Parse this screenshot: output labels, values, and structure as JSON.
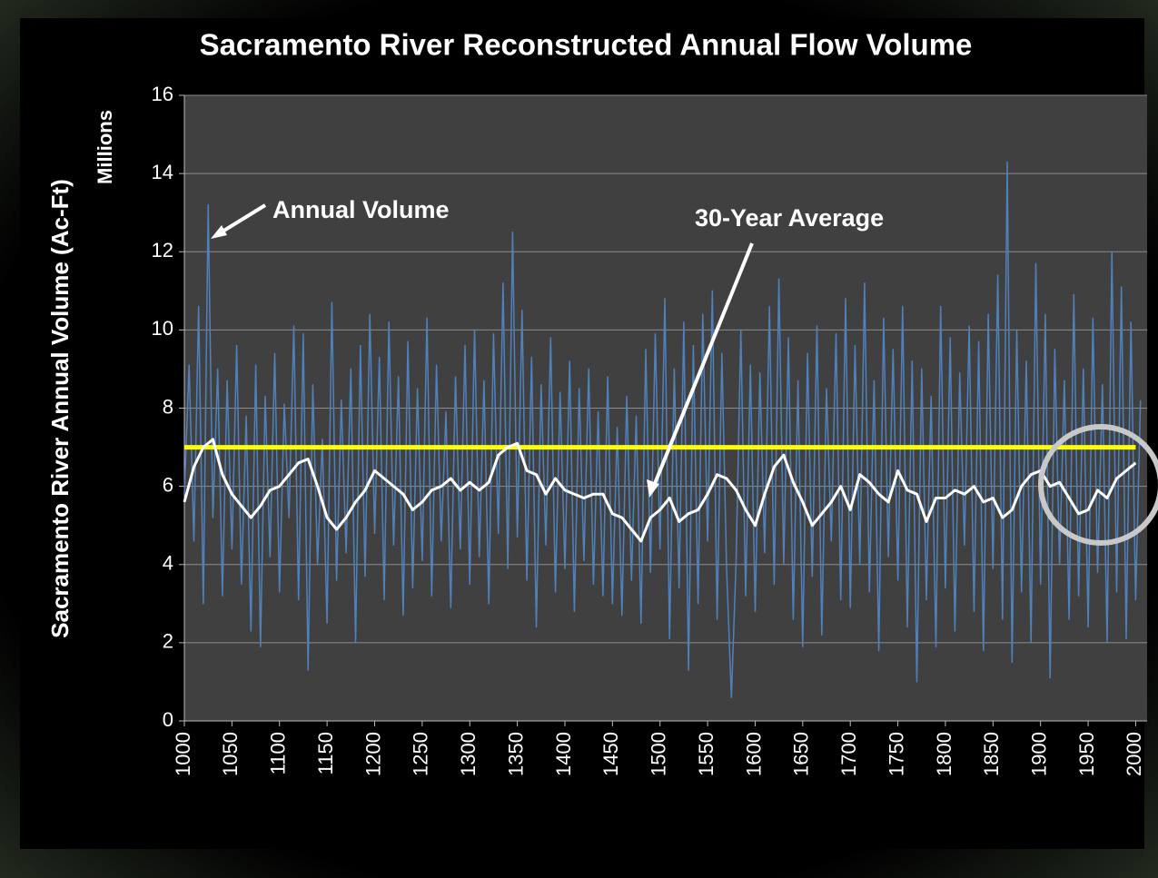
{
  "chart_data": {
    "type": "line",
    "title": "Sacramento River Reconstructed Annual Flow Volume",
    "y_label": "Sacramento River Annual Volume (Ac-Ft)",
    "y_unit_label": "Millions",
    "xlim": [
      1000,
      2012
    ],
    "ylim": [
      0,
      16
    ],
    "xticks": [
      1000,
      1050,
      1100,
      1150,
      1200,
      1250,
      1300,
      1350,
      1400,
      1450,
      1500,
      1550,
      1600,
      1650,
      1700,
      1750,
      1800,
      1850,
      1900,
      1950,
      2000
    ],
    "yticks": [
      0,
      2,
      4,
      6,
      8,
      10,
      12,
      14,
      16
    ],
    "grid": true,
    "series": [
      {
        "name": "Annual Volume",
        "color": "#4f81bd",
        "x": [
          1000,
          1005,
          1010,
          1015,
          1020,
          1025,
          1030,
          1035,
          1040,
          1045,
          1050,
          1055,
          1060,
          1065,
          1070,
          1075,
          1080,
          1085,
          1090,
          1095,
          1100,
          1105,
          1110,
          1115,
          1120,
          1125,
          1130,
          1135,
          1140,
          1145,
          1150,
          1155,
          1160,
          1165,
          1170,
          1175,
          1180,
          1185,
          1190,
          1195,
          1200,
          1205,
          1210,
          1215,
          1220,
          1225,
          1230,
          1235,
          1240,
          1245,
          1250,
          1255,
          1260,
          1265,
          1270,
          1275,
          1280,
          1285,
          1290,
          1295,
          1300,
          1305,
          1310,
          1315,
          1320,
          1325,
          1330,
          1335,
          1340,
          1345,
          1350,
          1355,
          1360,
          1365,
          1370,
          1375,
          1380,
          1385,
          1390,
          1395,
          1400,
          1405,
          1410,
          1415,
          1420,
          1425,
          1430,
          1435,
          1440,
          1445,
          1450,
          1455,
          1460,
          1465,
          1470,
          1475,
          1480,
          1485,
          1490,
          1495,
          1500,
          1505,
          1510,
          1515,
          1520,
          1525,
          1530,
          1535,
          1540,
          1545,
          1550,
          1555,
          1560,
          1565,
          1570,
          1575,
          1580,
          1585,
          1590,
          1595,
          1600,
          1605,
          1610,
          1615,
          1620,
          1625,
          1630,
          1635,
          1640,
          1645,
          1650,
          1655,
          1660,
          1665,
          1670,
          1675,
          1680,
          1685,
          1690,
          1695,
          1700,
          1705,
          1710,
          1715,
          1720,
          1725,
          1730,
          1735,
          1740,
          1745,
          1750,
          1755,
          1760,
          1765,
          1770,
          1775,
          1780,
          1785,
          1790,
          1795,
          1800,
          1805,
          1810,
          1815,
          1820,
          1825,
          1830,
          1835,
          1840,
          1845,
          1850,
          1855,
          1860,
          1865,
          1870,
          1875,
          1880,
          1885,
          1890,
          1895,
          1900,
          1905,
          1910,
          1915,
          1920,
          1925,
          1930,
          1935,
          1940,
          1945,
          1950,
          1955,
          1960,
          1965,
          1970,
          1975,
          1980,
          1985,
          1990,
          1995,
          2000,
          2005
        ],
        "values": [
          5.8,
          9.1,
          4.6,
          10.6,
          3.0,
          13.2,
          5.2,
          9.0,
          3.2,
          8.7,
          4.4,
          9.6,
          3.5,
          7.8,
          2.3,
          9.1,
          1.9,
          8.3,
          4.2,
          9.4,
          3.3,
          8.1,
          5.2,
          10.1,
          3.1,
          9.9,
          1.3,
          8.6,
          4.0,
          7.2,
          2.5,
          10.7,
          3.6,
          8.2,
          4.3,
          9.0,
          2.0,
          9.6,
          3.7,
          10.4,
          4.8,
          9.3,
          3.1,
          10.2,
          4.5,
          8.8,
          2.7,
          9.7,
          3.4,
          8.5,
          4.1,
          10.3,
          3.2,
          9.1,
          4.6,
          7.9,
          2.9,
          8.8,
          4.4,
          9.6,
          3.5,
          10.0,
          4.2,
          8.7,
          3.0,
          9.9,
          4.8,
          11.2,
          3.9,
          12.5,
          4.7,
          10.5,
          3.6,
          9.3,
          2.4,
          8.6,
          4.5,
          9.8,
          3.3,
          8.4,
          3.9,
          9.2,
          2.8,
          8.5,
          4.1,
          9.0,
          3.5,
          7.9,
          3.2,
          8.8,
          3.0,
          7.5,
          2.7,
          8.3,
          3.6,
          7.8,
          2.5,
          9.5,
          3.8,
          9.9,
          4.4,
          10.8,
          2.1,
          9.0,
          3.4,
          10.2,
          1.3,
          9.6,
          3.0,
          10.4,
          4.6,
          11.0,
          2.6,
          9.4,
          3.9,
          0.6,
          4.1,
          10.0,
          3.2,
          9.1,
          2.8,
          8.9,
          4.3,
          10.6,
          3.5,
          11.3,
          4.0,
          9.8,
          2.6,
          8.7,
          1.9,
          9.4,
          3.7,
          10.1,
          2.2,
          8.5,
          4.6,
          9.9,
          3.1,
          10.8,
          2.9,
          9.6,
          4.0,
          11.2,
          3.3,
          8.7,
          1.8,
          10.3,
          4.2,
          9.5,
          3.6,
          10.6,
          2.4,
          9.2,
          1.0,
          9.0,
          3.1,
          8.3,
          1.9,
          10.6,
          3.4,
          9.8,
          2.3,
          8.9,
          4.5,
          10.1,
          2.8,
          9.7,
          1.8,
          10.4,
          3.9,
          11.4,
          2.6,
          14.3,
          1.5,
          10.0,
          3.3,
          9.2,
          2.0,
          11.7,
          3.5,
          10.4,
          1.1,
          9.5,
          4.0,
          8.7,
          2.6,
          10.9,
          3.2,
          9.0,
          2.4,
          10.3,
          3.8,
          8.6,
          2.0,
          12.0,
          3.3,
          11.1,
          2.1,
          10.2,
          3.1,
          8.2
        ]
      },
      {
        "name": "30-Year Average",
        "color": "#ffffff",
        "x": [
          1000,
          1010,
          1020,
          1030,
          1040,
          1050,
          1060,
          1070,
          1080,
          1090,
          1100,
          1110,
          1120,
          1130,
          1140,
          1150,
          1160,
          1170,
          1180,
          1190,
          1200,
          1210,
          1220,
          1230,
          1240,
          1250,
          1260,
          1270,
          1280,
          1290,
          1300,
          1310,
          1320,
          1330,
          1340,
          1350,
          1360,
          1370,
          1380,
          1390,
          1400,
          1410,
          1420,
          1430,
          1440,
          1450,
          1460,
          1470,
          1480,
          1490,
          1500,
          1510,
          1520,
          1530,
          1540,
          1550,
          1560,
          1570,
          1580,
          1590,
          1600,
          1610,
          1620,
          1630,
          1640,
          1650,
          1660,
          1670,
          1680,
          1690,
          1700,
          1710,
          1720,
          1730,
          1740,
          1750,
          1760,
          1770,
          1780,
          1790,
          1800,
          1810,
          1820,
          1830,
          1840,
          1850,
          1860,
          1870,
          1880,
          1890,
          1900,
          1910,
          1920,
          1930,
          1940,
          1950,
          1960,
          1970,
          1980,
          1990,
          2000
        ],
        "values": [
          5.6,
          6.5,
          7.0,
          7.2,
          6.3,
          5.8,
          5.5,
          5.2,
          5.5,
          5.9,
          6.0,
          6.3,
          6.6,
          6.7,
          6.0,
          5.2,
          4.9,
          5.2,
          5.6,
          5.9,
          6.4,
          6.2,
          6.0,
          5.8,
          5.4,
          5.6,
          5.9,
          6.0,
          6.2,
          5.9,
          6.1,
          5.9,
          6.1,
          6.8,
          7.0,
          7.1,
          6.4,
          6.3,
          5.8,
          6.2,
          5.9,
          5.8,
          5.7,
          5.8,
          5.8,
          5.3,
          5.2,
          4.9,
          4.6,
          5.2,
          5.4,
          5.7,
          5.1,
          5.3,
          5.4,
          5.8,
          6.3,
          6.2,
          5.9,
          5.4,
          5.0,
          5.8,
          6.5,
          6.8,
          6.1,
          5.6,
          5.0,
          5.3,
          5.6,
          6.0,
          5.4,
          6.3,
          6.1,
          5.8,
          5.6,
          6.4,
          5.9,
          5.8,
          5.1,
          5.7,
          5.7,
          5.9,
          5.8,
          6.0,
          5.6,
          5.7,
          5.2,
          5.4,
          6.0,
          6.3,
          6.4,
          6.0,
          6.1,
          5.7,
          5.3,
          5.4,
          5.9,
          5.7,
          6.2,
          6.4,
          6.6
        ]
      }
    ],
    "reference_line": {
      "y": 7,
      "x": [
        1000,
        2000
      ],
      "color": "#ffff00"
    },
    "annotations": [
      {
        "text": "Annual Volume"
      },
      {
        "text": "30-Year Average"
      }
    ]
  }
}
